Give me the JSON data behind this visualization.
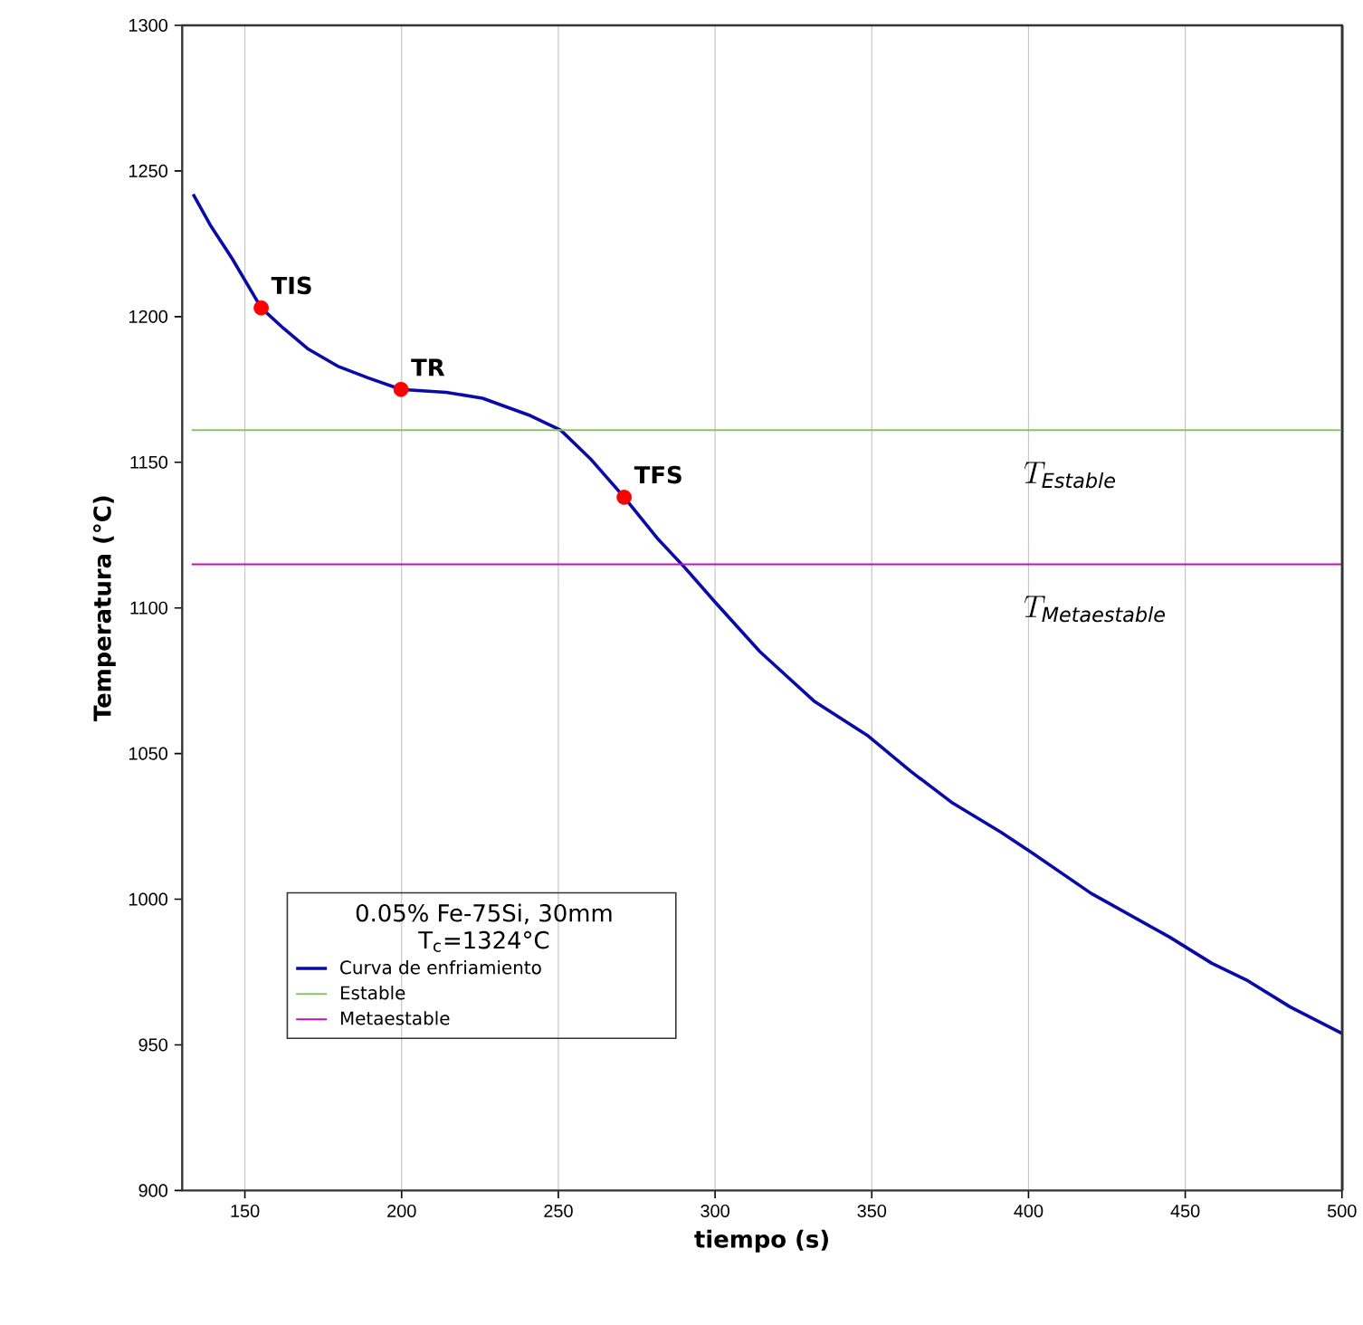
{
  "chart_data": {
    "type": "line",
    "xlabel": "tiempo (s)",
    "ylabel": "Temperatura (°C)",
    "legend_title": "0.05% Fe-75Si, 30mm T$_{c}$=1324°C",
    "legend": "bottom left",
    "grid": "x",
    "xlim": [
      130,
      500
    ],
    "ylim": [
      900,
      1300
    ],
    "xticks": [
      150,
      200,
      250,
      300,
      350,
      400,
      450,
      500
    ],
    "yticks": [
      900,
      950,
      1000,
      1050,
      1100,
      1150,
      1200,
      1250,
      1300
    ],
    "series": [
      {
        "name": "Curva de enfriamiento",
        "color": "#0a0aa8",
        "x": [
          133.5,
          139.2,
          145.9,
          155.2,
          162.3,
          170,
          179.6,
          189.2,
          199.8,
          214.2,
          225.8,
          241.1,
          250.8,
          260.4,
          271,
          281.5,
          290.2,
          300,
          314.3,
          331.6,
          348.9,
          362.3,
          375.8,
          391.2,
          401,
          420,
          445,
          458.5,
          470,
          483.5,
          499.9
        ],
        "values": [
          1242,
          1231,
          1220,
          1203,
          1196,
          1189,
          1183,
          1179,
          1175,
          1174,
          1172,
          1166,
          1161,
          1151,
          1138,
          1124,
          1114,
          1102,
          1085,
          1068,
          1056,
          1044,
          1033,
          1023,
          1016,
          1002,
          987,
          978,
          972,
          963,
          954
        ]
      },
      {
        "name": "Estable",
        "type": "line",
        "color": "#8cc06a",
        "x": [
          133,
          500
        ],
        "values": [
          1161,
          1161
        ]
      },
      {
        "name": "Metaestable",
        "type": "line",
        "color": "#c010c0",
        "x": [
          133,
          500
        ],
        "values": [
          1115,
          1115
        ]
      },
      {
        "type": "scatter",
        "color": "#ff0000",
        "marker": "circle",
        "x": [
          155.2,
          199.8,
          271
        ],
        "values": [
          1203,
          1175,
          1138
        ]
      }
    ],
    "annotations": [
      {
        "text": "TIS",
        "x": 155.2,
        "y": 1203
      },
      {
        "text": "TR",
        "x": 199.8,
        "y": 1175
      },
      {
        "text": "TFS",
        "x": 271,
        "y": 1138
      },
      "T_{\\mathit{Estable}}",
      "T_{\\mathit{Metaestable}}"
    ]
  }
}
